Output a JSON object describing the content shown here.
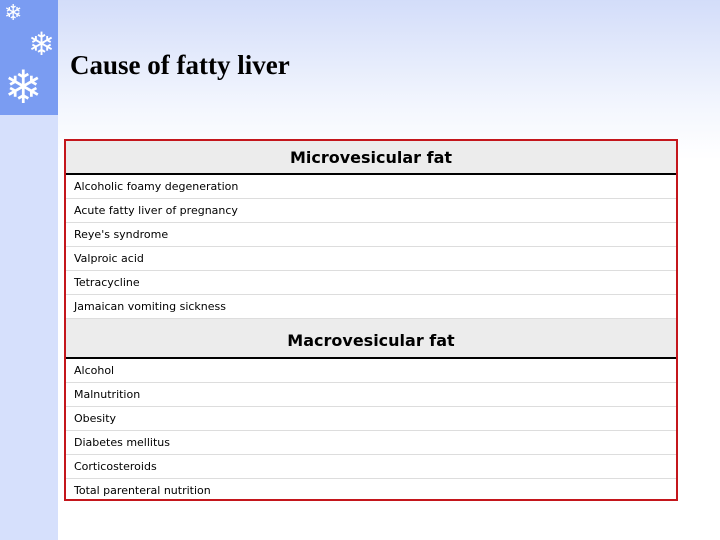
{
  "title": "Cause of fatty liver",
  "table": {
    "sections": [
      {
        "header": "Microvesicular fat",
        "items": [
          "Alcoholic foamy degeneration",
          "Acute fatty liver of pregnancy",
          "Reye's syndrome",
          "Valproic acid",
          "Tetracycline",
          "Jamaican vomiting sickness"
        ]
      },
      {
        "header": "Macrovesicular fat",
        "items": [
          "Alcohol",
          "Malnutrition",
          "Obesity",
          "Diabetes mellitus",
          "Corticosteroids",
          "Total parenteral nutrition"
        ]
      }
    ]
  }
}
